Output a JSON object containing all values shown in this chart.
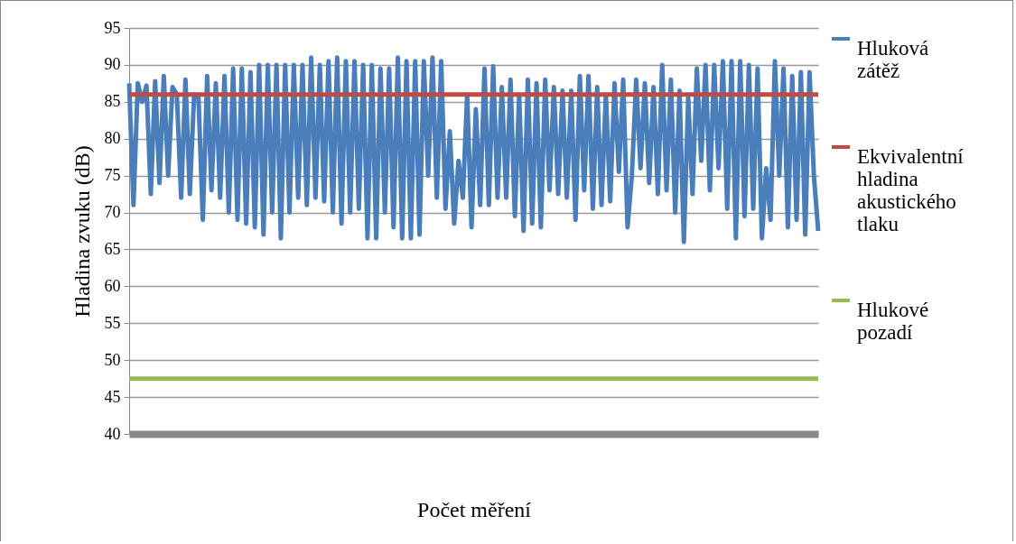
{
  "chart_data": {
    "type": "line",
    "xlabel": "Počet měření",
    "ylabel": "Hladina zvuku (dB)",
    "categories": [
      null,
      null,
      null,
      null,
      null,
      null,
      null,
      null,
      null,
      null,
      null,
      null,
      null,
      null,
      null,
      null,
      null,
      null,
      null,
      null,
      null,
      null,
      null,
      null,
      null,
      null,
      null,
      null,
      null,
      null,
      null,
      null,
      null,
      null,
      null,
      null,
      null,
      null,
      null,
      null,
      null,
      null,
      null,
      null,
      null,
      null,
      null,
      null,
      null,
      null,
      null,
      null,
      null,
      null,
      null,
      null,
      null,
      null,
      null,
      null,
      null,
      null,
      null,
      null,
      null,
      null,
      null,
      null,
      null,
      null,
      null,
      null,
      null,
      null,
      null,
      null,
      null,
      null,
      null,
      null,
      null,
      null,
      null,
      null,
      null,
      null,
      null,
      null,
      null,
      null,
      null,
      null,
      null,
      null,
      null,
      null,
      null,
      null,
      null,
      null,
      null,
      null,
      null,
      null,
      null,
      null,
      null,
      null,
      null,
      null,
      null,
      null,
      null,
      null,
      null,
      null,
      null,
      null,
      null,
      null,
      null,
      null,
      null,
      null,
      null,
      null,
      null,
      null,
      null,
      null,
      null,
      null,
      null,
      null,
      null,
      null,
      null,
      null,
      null,
      null,
      null,
      null,
      null,
      null,
      null,
      null,
      null,
      null,
      null,
      null,
      null,
      null,
      null,
      null,
      null,
      null,
      null,
      null,
      null,
      null
    ],
    "series": [
      {
        "name": "Hluková zátěž",
        "color": "#4a7ebb",
        "values": [
          87.5,
          71,
          87.5,
          85,
          87.2,
          72.5,
          87.8,
          74,
          88.5,
          75,
          87,
          86,
          72,
          88,
          72.5,
          86,
          85.6,
          69,
          88.5,
          73,
          87.5,
          72,
          88.5,
          70,
          89.5,
          69,
          89.5,
          68.5,
          89,
          68,
          90,
          67,
          90,
          70,
          90,
          66.5,
          90,
          70,
          90,
          72,
          90,
          71,
          91,
          72,
          90,
          71.5,
          90.5,
          70,
          91,
          68.5,
          90.5,
          70,
          90.5,
          70.5,
          90,
          66.5,
          90,
          66.5,
          89.5,
          70,
          89.5,
          68,
          91,
          66.5,
          90.5,
          66.5,
          90.5,
          67,
          90.5,
          75,
          91,
          72,
          90.5,
          70.5,
          81,
          68.5,
          77,
          72,
          86,
          68,
          84,
          71,
          89.5,
          71,
          89.8,
          72,
          87,
          72,
          88,
          69.5,
          86,
          67.5,
          88,
          68.5,
          87.5,
          68,
          88,
          73,
          87,
          72.5,
          86.5,
          72,
          86.5,
          69,
          88.5,
          73,
          88.5,
          70.5,
          87,
          71,
          86,
          71.5,
          87.5,
          75.5,
          88,
          68,
          75,
          88,
          76,
          87.5,
          74,
          87,
          72.5,
          90,
          73,
          88,
          70,
          86.5,
          66,
          85.5,
          72.5,
          89.5,
          77,
          90,
          73,
          90,
          76,
          90.5,
          70.5,
          90.5,
          66.5,
          90.5,
          69.5,
          90,
          70.5,
          89.5,
          66.5,
          76,
          69,
          90.5,
          75,
          89.5,
          68,
          88.5,
          69,
          89,
          67,
          89,
          75,
          67.5
        ]
      },
      {
        "name": "Ekvivalentní hladina akustického tlaku",
        "color": "#be4b48",
        "values": [
          86,
          86,
          86,
          86,
          86,
          86,
          86,
          86,
          86,
          86,
          86,
          86,
          86,
          86,
          86,
          86,
          86,
          86,
          86,
          86,
          86,
          86,
          86,
          86,
          86,
          86,
          86,
          86,
          86,
          86,
          86,
          86,
          86,
          86,
          86,
          86,
          86,
          86,
          86,
          86,
          86,
          86,
          86,
          86,
          86,
          86,
          86,
          86,
          86,
          86,
          86,
          86,
          86,
          86,
          86,
          86,
          86,
          86,
          86,
          86,
          86,
          86,
          86,
          86,
          86,
          86,
          86,
          86,
          86,
          86,
          86,
          86,
          86,
          86,
          86,
          86,
          86,
          86,
          86,
          86,
          86,
          86,
          86,
          86,
          86,
          86,
          86,
          86,
          86,
          86,
          86,
          86,
          86,
          86,
          86,
          86,
          86,
          86,
          86,
          86,
          86,
          86,
          86,
          86,
          86,
          86,
          86,
          86,
          86,
          86,
          86,
          86,
          86,
          86,
          86,
          86,
          86,
          86,
          86,
          86,
          86,
          86,
          86,
          86,
          86,
          86,
          86,
          86,
          86,
          86,
          86,
          86,
          86,
          86,
          86,
          86,
          86,
          86,
          86,
          86,
          86,
          86,
          86,
          86,
          86,
          86,
          86,
          86,
          86,
          86,
          86,
          86,
          86,
          86,
          86,
          86,
          86,
          86,
          86,
          86
        ]
      },
      {
        "name": "Hlukové pozadí",
        "color": "#98b954",
        "values": [
          47.5,
          47.5,
          47.5,
          47.5,
          47.5,
          47.5,
          47.5,
          47.5,
          47.5,
          47.5,
          47.5,
          47.5,
          47.5,
          47.5,
          47.5,
          47.5,
          47.5,
          47.5,
          47.5,
          47.5,
          47.5,
          47.5,
          47.5,
          47.5,
          47.5,
          47.5,
          47.5,
          47.5,
          47.5,
          47.5,
          47.5,
          47.5,
          47.5,
          47.5,
          47.5,
          47.5,
          47.5,
          47.5,
          47.5,
          47.5,
          47.5,
          47.5,
          47.5,
          47.5,
          47.5,
          47.5,
          47.5,
          47.5,
          47.5,
          47.5,
          47.5,
          47.5,
          47.5,
          47.5,
          47.5,
          47.5,
          47.5,
          47.5,
          47.5,
          47.5,
          47.5,
          47.5,
          47.5,
          47.5,
          47.5,
          47.5,
          47.5,
          47.5,
          47.5,
          47.5,
          47.5,
          47.5,
          47.5,
          47.5,
          47.5,
          47.5,
          47.5,
          47.5,
          47.5,
          47.5,
          47.5,
          47.5,
          47.5,
          47.5,
          47.5,
          47.5,
          47.5,
          47.5,
          47.5,
          47.5,
          47.5,
          47.5,
          47.5,
          47.5,
          47.5,
          47.5,
          47.5,
          47.5,
          47.5,
          47.5,
          47.5,
          47.5,
          47.5,
          47.5,
          47.5,
          47.5,
          47.5,
          47.5,
          47.5,
          47.5,
          47.5,
          47.5,
          47.5,
          47.5,
          47.5,
          47.5,
          47.5,
          47.5,
          47.5,
          47.5,
          47.5,
          47.5,
          47.5,
          47.5,
          47.5,
          47.5,
          47.5,
          47.5,
          47.5,
          47.5,
          47.5,
          47.5,
          47.5,
          47.5,
          47.5,
          47.5,
          47.5,
          47.5,
          47.5,
          47.5,
          47.5,
          47.5,
          47.5,
          47.5,
          47.5,
          47.5,
          47.5,
          47.5,
          47.5,
          47.5,
          47.5,
          47.5,
          47.5,
          47.5,
          47.5,
          47.5,
          47.5,
          47.5,
          47.5,
          47.5
        ]
      }
    ],
    "ylim": [
      40,
      95
    ],
    "yticks": [
      40,
      45,
      50,
      55,
      60,
      65,
      70,
      75,
      80,
      85,
      90,
      95
    ],
    "grid": "y",
    "legend": "right",
    "tick_labels": "y"
  }
}
